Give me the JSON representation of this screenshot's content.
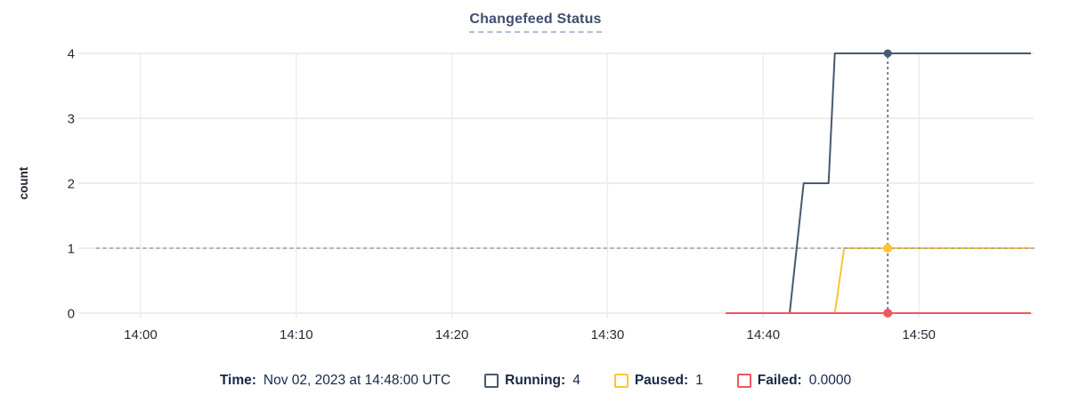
{
  "page": {
    "title": "Changefeed Status"
  },
  "colors": {
    "running": "#475872",
    "paused": "#ffc333",
    "failed": "#f2555c",
    "title_text": "#3e4f6e",
    "legend_text": "#152849",
    "axis_text": "#242c3a",
    "crosshair_vertical": "#44596e",
    "crosshair_horizontal": "#93a1ad"
  },
  "chart_data": {
    "type": "line",
    "title": "Changefeed Status",
    "xlabel": "",
    "ylabel": "count",
    "ylim": [
      0,
      4
    ],
    "y_ticks": [
      "4",
      "3",
      "2",
      "1",
      "0"
    ],
    "y_tick_values": [
      4,
      3,
      2,
      1,
      0
    ],
    "x_ticks": [
      {
        "label": "14:00",
        "t": 0
      },
      {
        "label": "14:10",
        "t": 10
      },
      {
        "label": "14:20",
        "t": 20
      },
      {
        "label": "14:30",
        "t": 30
      },
      {
        "label": "14:40",
        "t": 40
      },
      {
        "label": "14:50",
        "t": 50
      }
    ],
    "x_range_minutes": [
      -3.6,
      57.2
    ],
    "x_unit": "time of day (UTC), minutes relative to 14:00",
    "grid": true,
    "legend_position": "bottom",
    "series": [
      {
        "name": "Running",
        "color": "#475872",
        "points": [
          [
            37.6,
            0
          ],
          [
            41.7,
            0
          ],
          [
            42.6,
            2
          ],
          [
            44.2,
            2
          ],
          [
            44.6,
            4
          ],
          [
            57.2,
            4
          ]
        ]
      },
      {
        "name": "Paused",
        "color": "#ffc333",
        "points": [
          [
            37.6,
            0
          ],
          [
            44.6,
            0
          ],
          [
            45.2,
            1
          ],
          [
            57.2,
            1
          ]
        ]
      },
      {
        "name": "Failed",
        "color": "#f2555c",
        "points": [
          [
            37.6,
            0
          ],
          [
            57.2,
            0
          ]
        ]
      }
    ],
    "crosshair": {
      "t": 48,
      "time_label": "Nov 02, 2023 at 14:48:00 UTC",
      "horizontal_guide_value": 1,
      "markers": [
        {
          "series": "Running",
          "value": 4,
          "color": "#475872"
        },
        {
          "series": "Paused",
          "value": 1,
          "color": "#ffc333"
        },
        {
          "series": "Failed",
          "value": 0,
          "color": "#f2555c"
        }
      ]
    }
  },
  "legend": {
    "time_label": "Time:",
    "time_value": "Nov 02, 2023 at 14:48:00 UTC",
    "items": [
      {
        "id": "running",
        "label": "Running:",
        "value": "4",
        "color": "#475872"
      },
      {
        "id": "paused",
        "label": "Paused:",
        "value": "1",
        "color": "#ffc333"
      },
      {
        "id": "failed",
        "label": "Failed:",
        "value": "0.0000",
        "color": "#f2555c"
      }
    ]
  }
}
